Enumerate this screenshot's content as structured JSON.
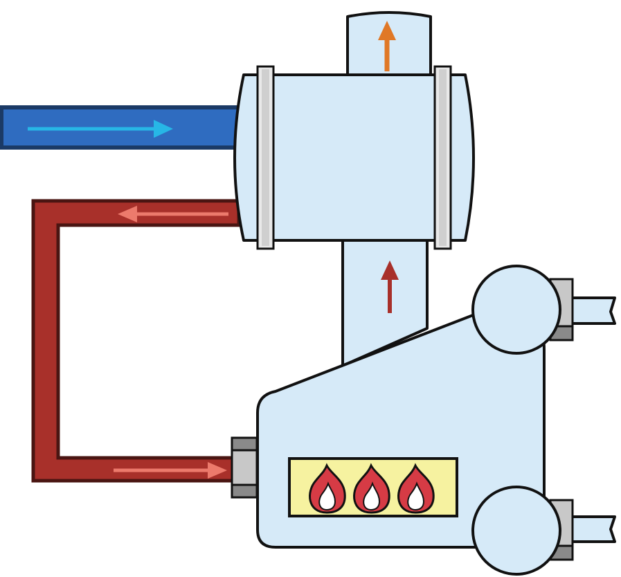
{
  "diagram": {
    "subject": "boiler-with-heat-exchanger-loop",
    "colors": {
      "vessel_fill": "#d6eaf8",
      "cold_inlet_pipe": "#2f6cc0",
      "cold_inlet_pipe_border": "#1b3a66",
      "cold_flow_arrow": "#27b7e6",
      "return_loop_pipe": "#a8302a",
      "return_loop_pipe_border": "#4a1512",
      "return_flow_arrow": "#ec7a6c",
      "hot_flue_arrow": "#a8302a",
      "exhaust_arrow": "#e07826",
      "burner_panel": "#f6f2a0",
      "flame_outer": "#d63b45",
      "flame_inner": "#ffffff",
      "fitting_light": "#c8c8c8",
      "fitting_dark": "#8a8a8a",
      "flange": "#cfcfcf"
    },
    "icons": {
      "flame": "fire-icon",
      "flow_arrow": "arrow-icon"
    },
    "burner_flame_count": 3
  }
}
